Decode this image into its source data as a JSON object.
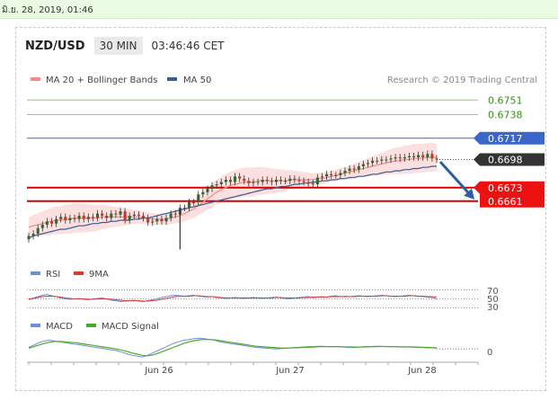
{
  "topbar": {
    "datetime": "มิ.ย. 28, 2019, 01:46"
  },
  "header": {
    "pair": "NZD/USD",
    "timeframe": "30 MIN",
    "time": "03:46:46 CET"
  },
  "legend": {
    "ma20": "MA 20 + Bollinger Bands",
    "ma50": "MA 50",
    "research": "Research © 2019 Trading Central"
  },
  "colors": {
    "ma20": "#f08b8b",
    "ma50": "#355f95",
    "band": "#fbd9d9",
    "up": "#2d6a2d",
    "down": "#c0392b",
    "resistance": "#8fcf6f",
    "support": "#d40000",
    "pivot": "#3b66c9",
    "arrow": "#2a5ea0",
    "rsi": "#6b8fd9",
    "rsi9": "#d63b3b",
    "macd": "#6b8fd9",
    "macdSignal": "#4ea82a"
  },
  "chart_data": {
    "type": "line",
    "title": "NZD/USD 30 MIN",
    "x_labels": [
      "Jun 26",
      "Jun 27",
      "Jun 28"
    ],
    "levels": {
      "resistance": [
        0.6751,
        0.6738
      ],
      "pivot": 0.6717,
      "last": 0.6698,
      "support": [
        0.6673,
        0.6661
      ]
    },
    "level_labels": {
      "r1": "0.6751",
      "r2": "0.6738",
      "pivot": "0.6717",
      "last": "0.6698",
      "s1": "0.6673",
      "s2": "0.6661"
    },
    "price_range": [
      0.6616,
      0.676
    ],
    "price_close": [
      0.663,
      0.6632,
      0.6637,
      0.664,
      0.6643,
      0.6641,
      0.6645,
      0.6647,
      0.6644,
      0.6646,
      0.6645,
      0.6648,
      0.6645,
      0.6647,
      0.6646,
      0.665,
      0.6648,
      0.6646,
      0.665,
      0.6649,
      0.6652,
      0.6644,
      0.6648,
      0.6649,
      0.6648,
      0.6646,
      0.6642,
      0.6643,
      0.6645,
      0.6643,
      0.6646,
      0.665,
      0.6649,
      0.6655,
      0.6655,
      0.666,
      0.666,
      0.6667,
      0.6669,
      0.6672,
      0.6675,
      0.6676,
      0.6678,
      0.668,
      0.6678,
      0.6683,
      0.6681,
      0.6679,
      0.6677,
      0.6678,
      0.6678,
      0.668,
      0.6679,
      0.6678,
      0.668,
      0.6679,
      0.6679,
      0.6681,
      0.668,
      0.6679,
      0.6678,
      0.6677,
      0.6676,
      0.6682,
      0.6683,
      0.6685,
      0.6684,
      0.6684,
      0.6686,
      0.6688,
      0.669,
      0.6689,
      0.6692,
      0.6694,
      0.6695,
      0.6697,
      0.6697,
      0.6698,
      0.6698,
      0.6699,
      0.67,
      0.6699,
      0.67,
      0.6701,
      0.67,
      0.6702,
      0.67,
      0.6703,
      0.6699,
      0.6698
    ],
    "price_low_spike": 0.6618,
    "ma20": [
      0.6638,
      0.6639,
      0.664,
      0.6641,
      0.6642,
      0.6643,
      0.6644,
      0.6644,
      0.6645,
      0.6645,
      0.6646,
      0.6646,
      0.6646,
      0.6646,
      0.6646,
      0.6646,
      0.6647,
      0.6647,
      0.6647,
      0.6647,
      0.6647,
      0.6647,
      0.6647,
      0.6647,
      0.6647,
      0.6646,
      0.6646,
      0.6645,
      0.6645,
      0.6645,
      0.6645,
      0.6646,
      0.6647,
      0.6648,
      0.665,
      0.6652,
      0.6654,
      0.6657,
      0.666,
      0.6663,
      0.6666,
      0.6669,
      0.6671,
      0.6673,
      0.6675,
      0.6676,
      0.6677,
      0.6678,
      0.6678,
      0.6678,
      0.6679,
      0.6679,
      0.6679,
      0.6679,
      0.6679,
      0.6679,
      0.6679,
      0.668,
      0.668,
      0.668,
      0.668,
      0.668,
      0.668,
      0.6681,
      0.6681,
      0.6682,
      0.6683,
      0.6684,
      0.6685,
      0.6686,
      0.6687,
      0.6688,
      0.6689,
      0.669,
      0.6691,
      0.6692,
      0.6693,
      0.6694,
      0.6695,
      0.6696,
      0.6697,
      0.6697,
      0.6698,
      0.6698,
      0.6699,
      0.6699,
      0.6699,
      0.67,
      0.67,
      0.67
    ],
    "ma50": [
      0.6628,
      0.663,
      0.6631,
      0.6632,
      0.6633,
      0.6634,
      0.6635,
      0.6636,
      0.6636,
      0.6637,
      0.6638,
      0.6639,
      0.6639,
      0.664,
      0.6641,
      0.6641,
      0.6642,
      0.6642,
      0.6643,
      0.6643,
      0.6644,
      0.6644,
      0.6644,
      0.6645,
      0.6645,
      0.6646,
      0.6646,
      0.6647,
      0.6648,
      0.6649,
      0.665,
      0.6651,
      0.6652,
      0.6653,
      0.6654,
      0.6655,
      0.6656,
      0.6657,
      0.6658,
      0.6659,
      0.666,
      0.6661,
      0.6662,
      0.6663,
      0.6664,
      0.6665,
      0.6666,
      0.6667,
      0.6668,
      0.6669,
      0.667,
      0.6671,
      0.6672,
      0.6672,
      0.6673,
      0.6674,
      0.6674,
      0.6675,
      0.6676,
      0.6676,
      0.6677,
      0.6677,
      0.6678,
      0.6678,
      0.6679,
      0.6679,
      0.668,
      0.668,
      0.6681,
      0.6681,
      0.6682,
      0.6682,
      0.6683,
      0.6683,
      0.6684,
      0.6685,
      0.6685,
      0.6686,
      0.6687,
      0.6687,
      0.6688,
      0.6688,
      0.6689,
      0.6689,
      0.669,
      0.669,
      0.6691,
      0.6691,
      0.6692,
      0.6692
    ],
    "rsi_legend": [
      "RSI",
      "9MA"
    ],
    "rsi_levels": [
      "70",
      "50",
      "30"
    ],
    "rsi": [
      48,
      52,
      55,
      58,
      60,
      57,
      55,
      52,
      50,
      49,
      50,
      51,
      49,
      48,
      50,
      51,
      52,
      50,
      47,
      46,
      44,
      45,
      46,
      47,
      45,
      44,
      46,
      48,
      50,
      53,
      55,
      57,
      58,
      57,
      56,
      57,
      58,
      56,
      55,
      54,
      55,
      53,
      52,
      51,
      52,
      53,
      52,
      51,
      52,
      53,
      52,
      51,
      52,
      53,
      54,
      52,
      51,
      50,
      52,
      53,
      54,
      55,
      53,
      54,
      55,
      54,
      56,
      57,
      55,
      56,
      55,
      56,
      57,
      56,
      55,
      56,
      57,
      58,
      57,
      56,
      55,
      56,
      57,
      58,
      57,
      56,
      55,
      54,
      53,
      50
    ],
    "rsi_ma": [
      50,
      51,
      53,
      55,
      56,
      56,
      55,
      54,
      52,
      51,
      50,
      50,
      50,
      49,
      49,
      50,
      50,
      50,
      49,
      48,
      47,
      46,
      46,
      46,
      46,
      45,
      45,
      46,
      47,
      49,
      51,
      53,
      55,
      56,
      56,
      56,
      57,
      57,
      56,
      55,
      55,
      54,
      53,
      52,
      52,
      52,
      52,
      52,
      52,
      52,
      52,
      52,
      52,
      52,
      53,
      53,
      52,
      52,
      52,
      52,
      53,
      53,
      54,
      54,
      54,
      54,
      55,
      55,
      55,
      55,
      55,
      55,
      56,
      56,
      56,
      56,
      56,
      57,
      57,
      56,
      56,
      56,
      56,
      57,
      57,
      56,
      56,
      55,
      55,
      54
    ],
    "macd_legend": [
      "MACD",
      "MACD Signal"
    ],
    "macd_level": "0",
    "macd": [
      0.2,
      0.5,
      0.8,
      1.0,
      1.1,
      1.0,
      0.9,
      0.8,
      0.7,
      0.6,
      0.5,
      0.4,
      0.3,
      0.2,
      0.1,
      0.0,
      -0.1,
      -0.2,
      -0.4,
      -0.6,
      -0.8,
      -0.9,
      -1.0,
      -0.8,
      -0.5,
      -0.2,
      0.1,
      0.4,
      0.7,
      0.9,
      1.1,
      1.2,
      1.3,
      1.35,
      1.3,
      1.2,
      1.1,
      0.9,
      0.8,
      0.7,
      0.6,
      0.5,
      0.4,
      0.3,
      0.2,
      0.15,
      0.1,
      0.05,
      0.0,
      0.05,
      0.1,
      0.15,
      0.2,
      0.25,
      0.3,
      0.3,
      0.35,
      0.35,
      0.3,
      0.3,
      0.3,
      0.25,
      0.2,
      0.2,
      0.25,
      0.3,
      0.3,
      0.35,
      0.35,
      0.3,
      0.3,
      0.3,
      0.25,
      0.25,
      0.25,
      0.2,
      0.2,
      0.15,
      0.15,
      0.1
    ],
    "macd_signal": [
      0.1,
      0.3,
      0.5,
      0.7,
      0.85,
      0.95,
      0.95,
      0.9,
      0.85,
      0.8,
      0.7,
      0.6,
      0.5,
      0.4,
      0.3,
      0.2,
      0.1,
      0.0,
      -0.15,
      -0.3,
      -0.5,
      -0.65,
      -0.8,
      -0.85,
      -0.75,
      -0.55,
      -0.3,
      -0.05,
      0.2,
      0.45,
      0.7,
      0.9,
      1.05,
      1.15,
      1.2,
      1.2,
      1.15,
      1.05,
      0.95,
      0.85,
      0.75,
      0.65,
      0.55,
      0.45,
      0.35,
      0.3,
      0.25,
      0.2,
      0.15,
      0.12,
      0.12,
      0.14,
      0.16,
      0.2,
      0.22,
      0.25,
      0.28,
      0.3,
      0.3,
      0.3,
      0.3,
      0.28,
      0.26,
      0.24,
      0.24,
      0.26,
      0.28,
      0.3,
      0.31,
      0.31,
      0.3,
      0.3,
      0.28,
      0.27,
      0.26,
      0.24,
      0.22,
      0.2,
      0.18,
      0.15
    ]
  }
}
